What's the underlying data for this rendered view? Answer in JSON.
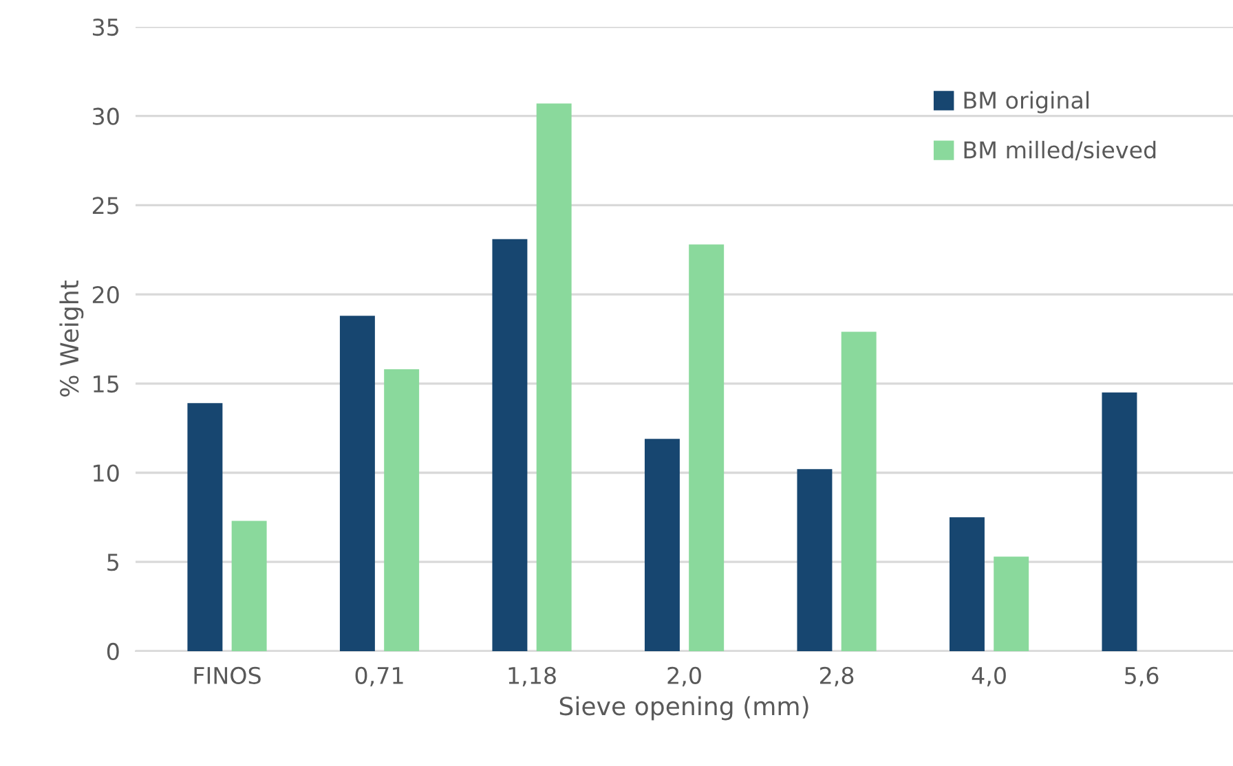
{
  "chart_data": {
    "type": "bar",
    "xlabel": "Sieve opening (mm)",
    "ylabel": "% Weight",
    "categories": [
      "FINOS",
      "0,71",
      "1,18",
      "2,0",
      "2,8",
      "4,0",
      "5,6"
    ],
    "series": [
      {
        "name": "BM original",
        "color": "#174670",
        "values": [
          13.9,
          18.8,
          23.1,
          11.9,
          10.2,
          7.5,
          14.5
        ]
      },
      {
        "name": "BM milled/sieved",
        "color": "#8ad99c",
        "values": [
          7.3,
          15.8,
          30.7,
          22.8,
          17.9,
          5.3,
          null
        ]
      }
    ],
    "ylim": [
      0,
      35
    ],
    "yticks": [
      0,
      5,
      10,
      15,
      20,
      25,
      30,
      35
    ],
    "grid": "y",
    "legend": "top right"
  }
}
